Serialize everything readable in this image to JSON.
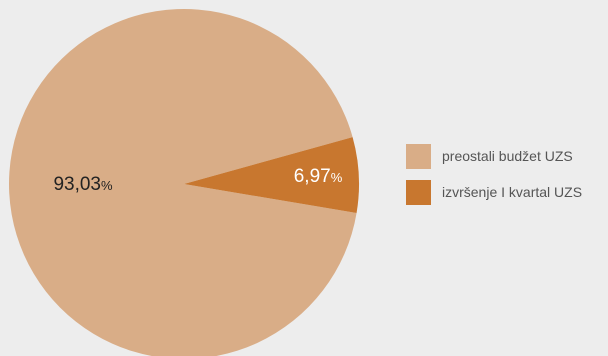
{
  "chart_data": {
    "type": "pie",
    "slices": [
      {
        "name": "preostali budžet UZS",
        "value": 93.03,
        "label": "93,03",
        "unit": "%",
        "color": "#d9ad87",
        "label_color": "#222222"
      },
      {
        "name": "izvršenje I kvartal UZS",
        "value": 6.97,
        "label": "6,97",
        "unit": "%",
        "color": "#c8772f",
        "label_color": "#ffffff"
      }
    ],
    "legend_position": "right"
  }
}
